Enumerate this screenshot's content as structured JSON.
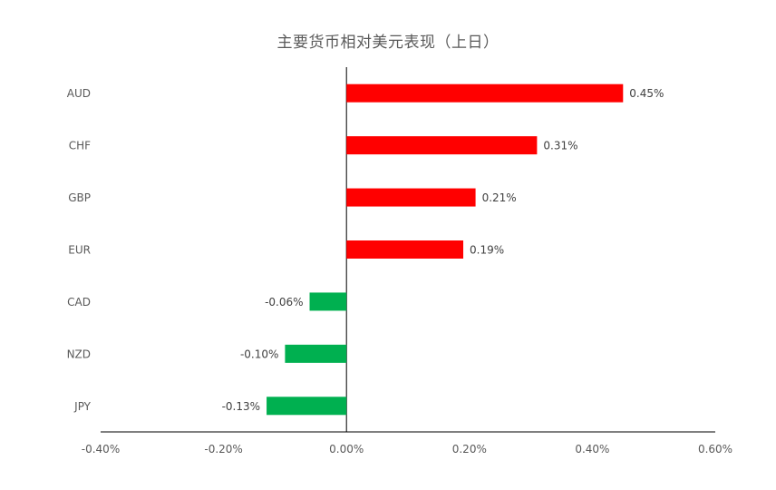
{
  "chart_data": {
    "type": "bar",
    "orientation": "horizontal",
    "title": "主要货币相对美元表现（上日）",
    "categories": [
      "AUD",
      "CHF",
      "GBP",
      "EUR",
      "CAD",
      "NZD",
      "JPY"
    ],
    "values": [
      0.45,
      0.31,
      0.21,
      0.19,
      -0.06,
      -0.1,
      -0.13
    ],
    "value_labels": [
      "0.45%",
      "0.31%",
      "0.21%",
      "0.19%",
      "-0.06%",
      "-0.10%",
      "-0.13%"
    ],
    "xlim": [
      -0.4,
      0.6
    ],
    "xticks": [
      -0.4,
      -0.2,
      0.0,
      0.2,
      0.4,
      0.6
    ],
    "xtick_labels": [
      "-0.40%",
      "-0.20%",
      "0.00%",
      "0.20%",
      "0.40%",
      "0.60%"
    ],
    "grid": false,
    "legend": "none",
    "colors": {
      "positive": "#ff0000",
      "negative": "#00b050",
      "axis": "#000000",
      "text": "#595959"
    }
  }
}
